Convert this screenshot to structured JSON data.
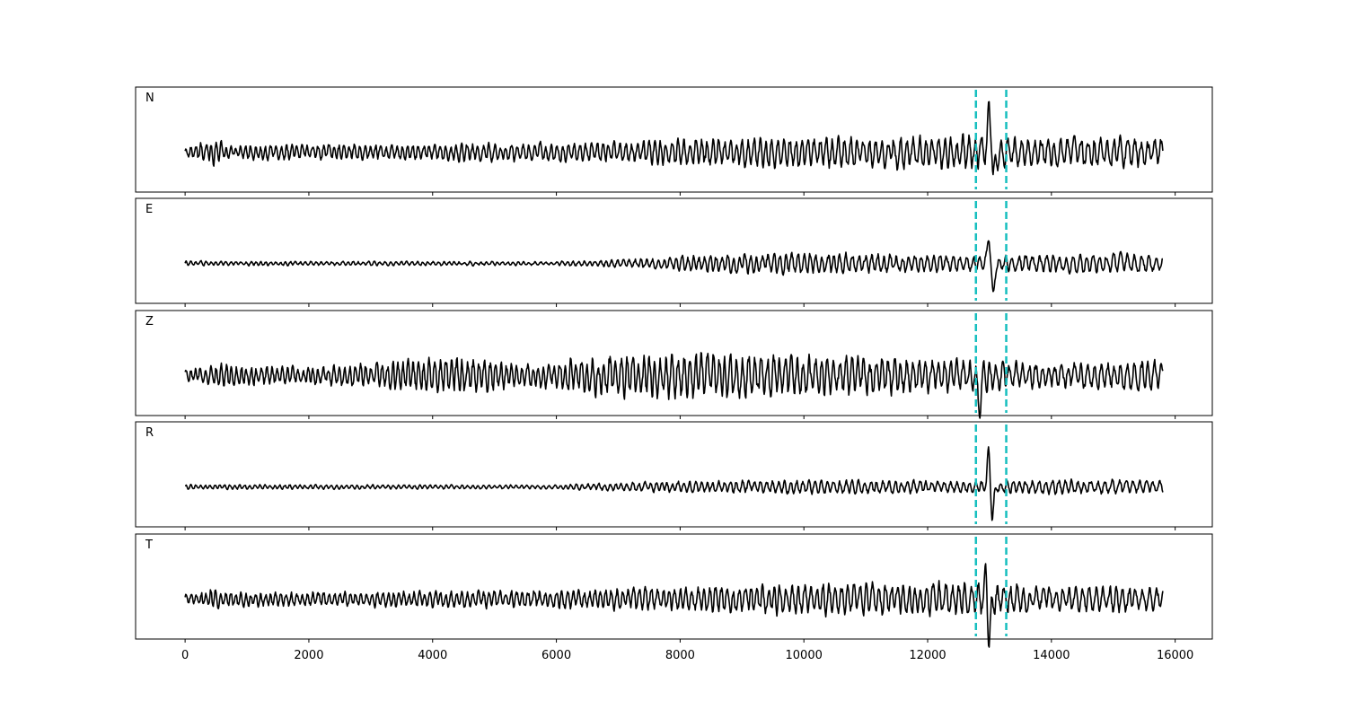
{
  "chart_data": {
    "type": "line",
    "title": "",
    "xlabel": "",
    "ylabel": "",
    "xlim": [
      -800,
      16600
    ],
    "xticks": [
      0,
      2000,
      4000,
      6000,
      8000,
      10000,
      12000,
      14000,
      16000
    ],
    "xtick_labels": [
      "0",
      "2000",
      "4000",
      "6000",
      "8000",
      "10000",
      "12000",
      "14000",
      "16000"
    ],
    "sample_range": [
      0,
      15800
    ],
    "markers": {
      "x": [
        12780,
        13270
      ],
      "color": "#17bfbf",
      "style": "dashed"
    },
    "trace_color": "#000000",
    "panels": [
      {
        "label": "N",
        "envelope": [
          {
            "x": 0,
            "amp": 0.35
          },
          {
            "x": 500,
            "amp": 0.75
          },
          {
            "x": 700,
            "amp": 0.45
          },
          {
            "x": 4000,
            "amp": 0.5
          },
          {
            "x": 4400,
            "amp": 0.55
          },
          {
            "x": 7000,
            "amp": 0.6
          },
          {
            "x": 7700,
            "amp": 0.8
          },
          {
            "x": 8500,
            "amp": 0.85
          },
          {
            "x": 9000,
            "amp": 0.9
          },
          {
            "x": 11500,
            "amp": 1.0
          },
          {
            "x": 12500,
            "amp": 1.0
          },
          {
            "x": 12950,
            "amp": 1.0
          },
          {
            "x": 13500,
            "amp": 0.8
          },
          {
            "x": 15000,
            "amp": 1.0
          },
          {
            "x": 15800,
            "amp": 0.75
          }
        ],
        "peaks": [
          {
            "x": 12990,
            "y": 2.0
          },
          {
            "x": 13070,
            "y": -1.1
          }
        ]
      },
      {
        "label": "E",
        "envelope": [
          {
            "x": 0,
            "amp": 0.15
          },
          {
            "x": 6000,
            "amp": 0.12
          },
          {
            "x": 7000,
            "amp": 0.25
          },
          {
            "x": 8300,
            "amp": 0.5
          },
          {
            "x": 9000,
            "amp": 0.6
          },
          {
            "x": 11000,
            "amp": 0.6
          },
          {
            "x": 12500,
            "amp": 0.45
          },
          {
            "x": 13500,
            "amp": 0.5
          },
          {
            "x": 15000,
            "amp": 0.6
          },
          {
            "x": 15800,
            "amp": 0.5
          }
        ],
        "peaks": [
          {
            "x": 12980,
            "y": 1.4
          },
          {
            "x": 13050,
            "y": -1.6
          }
        ]
      },
      {
        "label": "Z",
        "envelope": [
          {
            "x": 0,
            "amp": 0.4
          },
          {
            "x": 600,
            "amp": 0.7
          },
          {
            "x": 2000,
            "amp": 0.5
          },
          {
            "x": 4400,
            "amp": 1.2
          },
          {
            "x": 5500,
            "amp": 0.7
          },
          {
            "x": 6600,
            "amp": 1.2
          },
          {
            "x": 8300,
            "amp": 1.4
          },
          {
            "x": 9000,
            "amp": 1.3
          },
          {
            "x": 11500,
            "amp": 1.1
          },
          {
            "x": 12800,
            "amp": 0.9
          },
          {
            "x": 14000,
            "amp": 0.7
          },
          {
            "x": 15200,
            "amp": 0.9
          },
          {
            "x": 15800,
            "amp": 0.8
          }
        ],
        "peaks": [
          {
            "x": 12830,
            "y": -1.3
          }
        ]
      },
      {
        "label": "R",
        "envelope": [
          {
            "x": 0,
            "amp": 0.15
          },
          {
            "x": 6000,
            "amp": 0.12
          },
          {
            "x": 7000,
            "amp": 0.25
          },
          {
            "x": 8500,
            "amp": 0.4
          },
          {
            "x": 11000,
            "amp": 0.4
          },
          {
            "x": 12500,
            "amp": 0.35
          },
          {
            "x": 13500,
            "amp": 0.4
          },
          {
            "x": 15000,
            "amp": 0.45
          },
          {
            "x": 15800,
            "amp": 0.35
          }
        ],
        "peaks": [
          {
            "x": 12980,
            "y": 1.6
          },
          {
            "x": 13040,
            "y": -1.5
          }
        ]
      },
      {
        "label": "T",
        "envelope": [
          {
            "x": 0,
            "amp": 0.35
          },
          {
            "x": 500,
            "amp": 0.7
          },
          {
            "x": 700,
            "amp": 0.45
          },
          {
            "x": 4000,
            "amp": 0.5
          },
          {
            "x": 6000,
            "amp": 0.55
          },
          {
            "x": 7500,
            "amp": 0.7
          },
          {
            "x": 9000,
            "amp": 0.9
          },
          {
            "x": 12000,
            "amp": 1.0
          },
          {
            "x": 13000,
            "amp": 1.0
          },
          {
            "x": 14000,
            "amp": 0.7
          },
          {
            "x": 15000,
            "amp": 0.8
          },
          {
            "x": 15800,
            "amp": 0.6
          }
        ],
        "peaks": [
          {
            "x": 12990,
            "y": -2.0
          },
          {
            "x": 12930,
            "y": 1.1
          }
        ]
      }
    ]
  }
}
